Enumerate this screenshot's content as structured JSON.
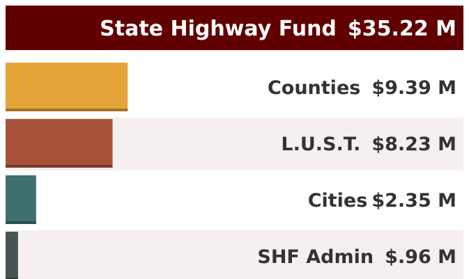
{
  "chart_data": {
    "type": "bar",
    "categories": [
      "State Highway Fund",
      "Counties",
      "L.U.S.T.",
      "Cities",
      "SHF Admin"
    ],
    "values": [
      35.22,
      9.39,
      8.23,
      2.35,
      0.96
    ],
    "value_labels": [
      "$35.22 M",
      "$9.39 M",
      "$8.23 M",
      "$2.35 M",
      "$.96 M"
    ],
    "colors": [
      "#600000",
      "#e5a43a",
      "#a8513a",
      "#3f706c",
      "#455553"
    ],
    "xlim": [
      0,
      35.22
    ]
  }
}
